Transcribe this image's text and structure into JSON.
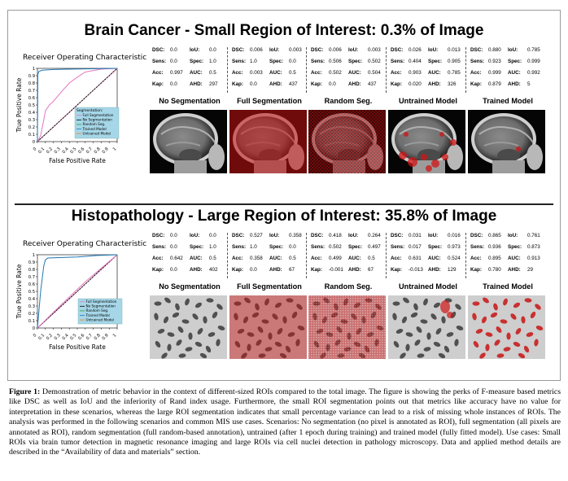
{
  "sections": [
    {
      "title": "Brain Cancer - Small Region of Interest: 0.3% of Image",
      "roc": {
        "title": "Receiver Operating Characteristic",
        "ylabel": "True Positive Rate",
        "xlabel": "False Positive Rate",
        "ticks": [
          "0",
          "0.1",
          "0.2",
          "0.3",
          "0.4",
          "0.5",
          "0.6",
          "0.7",
          "0.8",
          "0.9",
          "1"
        ],
        "legend_title": "Segmentation:",
        "legend": [
          "Full Segmentation",
          "No Segmentation",
          "Random Seg.",
          "Trained Model",
          "Untrained Model"
        ]
      },
      "panels": [
        {
          "label": "No Segmentation",
          "dsc": "0.0",
          "iou": "0.0",
          "sens": "0.0",
          "spec": "1.0",
          "acc": "0.997",
          "auc": "0.5",
          "kap": "0.0",
          "ahd": "297"
        },
        {
          "label": "Full Segmentation",
          "dsc": "0.006",
          "iou": "0.003",
          "sens": "1.0",
          "spec": "0.0",
          "acc": "0.003",
          "auc": "0.5",
          "kap": "0.0",
          "ahd": "437"
        },
        {
          "label": "Random Seg.",
          "dsc": "0.006",
          "iou": "0.003",
          "sens": "0.506",
          "spec": "0.502",
          "acc": "0.502",
          "auc": "0.504",
          "kap": "0.0",
          "ahd": "437"
        },
        {
          "label": "Untrained Model",
          "dsc": "0.026",
          "iou": "0.013",
          "sens": "0.404",
          "spec": "0.905",
          "acc": "0.903",
          "auc": "0.785",
          "kap": "0.020",
          "ahd": "326"
        },
        {
          "label": "Trained Model",
          "dsc": "0.880",
          "iou": "0.785",
          "sens": "0.923",
          "spec": "0.999",
          "acc": "0.999",
          "auc": "0.992",
          "kap": "0.879",
          "ahd": "5"
        }
      ]
    },
    {
      "title": "Histopathology - Large Region of Interest: 35.8% of Image",
      "roc": {
        "title": "Receiver Operating Characteristic",
        "ylabel": "True Positive Rate",
        "xlabel": "False Positive Rate",
        "ticks": [
          "0",
          "0.1",
          "0.2",
          "0.3",
          "0.4",
          "0.5",
          "0.6",
          "0.7",
          "0.8",
          "0.9",
          "1"
        ],
        "legend_title": "",
        "legend": [
          "Full Segmentation",
          "No Segmentation",
          "Random Seg.",
          "Trained Model",
          "Untrained Model"
        ]
      },
      "panels": [
        {
          "label": "No Segmentation",
          "dsc": "0.0",
          "iou": "0.0",
          "sens": "0.0",
          "spec": "1.0",
          "acc": "0.642",
          "auc": "0.5",
          "kap": "0.0",
          "ahd": "402"
        },
        {
          "label": "Full Segmentation",
          "dsc": "0.527",
          "iou": "0.358",
          "sens": "1.0",
          "spec": "0.0",
          "acc": "0.358",
          "auc": "0.5",
          "kap": "0.0",
          "ahd": "67"
        },
        {
          "label": "Random Seg.",
          "dsc": "0.418",
          "iou": "0.264",
          "sens": "0.502",
          "spec": "0.497",
          "acc": "0.499",
          "auc": "0.5",
          "kap": "-0.001",
          "ahd": "67"
        },
        {
          "label": "Untrained Model",
          "dsc": "0.031",
          "iou": "0.016",
          "sens": "0.017",
          "spec": "0.973",
          "acc": "0.631",
          "auc": "0.524",
          "kap": "-0.013",
          "ahd": "129"
        },
        {
          "label": "Trained Model",
          "dsc": "0.865",
          "iou": "0.761",
          "sens": "0.936",
          "spec": "0.873",
          "acc": "0.895",
          "auc": "0.913",
          "kap": "0.780",
          "ahd": "29"
        }
      ]
    }
  ],
  "metric_keys": {
    "dsc": "DSC:",
    "iou": "IoU:",
    "sens": "Sens:",
    "spec": "Spec:",
    "acc": "Acc:",
    "auc": "AUC:",
    "kap": "Kap:",
    "ahd": "AHD:"
  },
  "colors": {
    "full": "#e377c2",
    "no": "#1f77b4",
    "random": "#2ca02c",
    "trained": "#1f77b4",
    "untrained": "#ff7f0e",
    "legend_bg": "#a6d7e8",
    "mask": "#d21414"
  },
  "chart_data": [
    {
      "type": "line",
      "title": "Receiver Operating Characteristic",
      "xlabel": "False Positive Rate",
      "ylabel": "True Positive Rate",
      "xlim": [
        0,
        1
      ],
      "ylim": [
        0,
        1
      ],
      "series": [
        {
          "name": "Full Segmentation",
          "x": [
            0,
            1
          ],
          "y": [
            0,
            1
          ]
        },
        {
          "name": "No Segmentation",
          "x": [
            0,
            1
          ],
          "y": [
            0,
            1
          ]
        },
        {
          "name": "Random Seg.",
          "x": [
            0,
            1
          ],
          "y": [
            0,
            1
          ]
        },
        {
          "name": "Trained Model",
          "x": [
            0,
            0.005,
            0.02,
            0.06,
            0.2,
            0.45,
            0.7,
            1
          ],
          "y": [
            0,
            0.92,
            0.96,
            0.975,
            0.985,
            0.99,
            0.995,
            1
          ]
        },
        {
          "name": "Untrained Model",
          "x": [
            0,
            0.04,
            0.08,
            0.1,
            0.15,
            0.2,
            0.3,
            0.4,
            0.5,
            0.6,
            0.8,
            1
          ],
          "y": [
            0,
            0.08,
            0.3,
            0.42,
            0.5,
            0.55,
            0.68,
            0.8,
            0.88,
            0.95,
            0.99,
            1
          ]
        }
      ]
    },
    {
      "type": "line",
      "title": "Receiver Operating Characteristic",
      "xlabel": "False Positive Rate",
      "ylabel": "True Positive Rate",
      "xlim": [
        0,
        1
      ],
      "ylim": [
        0,
        1
      ],
      "series": [
        {
          "name": "Full Segmentation",
          "x": [
            0,
            1
          ],
          "y": [
            0,
            1
          ]
        },
        {
          "name": "No Segmentation",
          "x": [
            0,
            1
          ],
          "y": [
            0,
            1
          ]
        },
        {
          "name": "Random Seg.",
          "x": [
            0,
            1
          ],
          "y": [
            0,
            1
          ]
        },
        {
          "name": "Trained Model",
          "x": [
            0,
            0.04,
            0.08,
            0.1,
            0.13,
            0.5,
            0.75,
            1
          ],
          "y": [
            0,
            0.5,
            0.85,
            0.93,
            0.955,
            0.97,
            0.99,
            1
          ]
        },
        {
          "name": "Untrained Model",
          "x": [
            0,
            0.3,
            0.6,
            1
          ],
          "y": [
            0,
            0.32,
            0.63,
            1
          ]
        }
      ]
    }
  ],
  "caption": {
    "label": "Figure 1:",
    "text": " Demonstration of metric behavior in the context of different-sized ROIs compared to the total image. The figure is showing the perks of F-measure based metrics like DSC as well as IoU and the inferiority of Rand index usage. Furthermore, the small ROI segmentation points out that metrics like accuracy have no value for interpretation in these scenarios, whereas the large ROI segmentation indicates that small percentage variance can lead to a risk of missing whole instances of ROIs. The analysis was performed in the following scenarios and common MIS use cases. Scenarios: No segmentation (no pixel is annotated as ROI), full segmentation (all pixels are annotated as ROI), random segmentation (full random-based annotation), untrained (after 1 epoch during training) and trained model (fully fitted model). Use cases: Small ROIs via brain tumor detection in magnetic resonance imaging and large ROIs via cell nuclei detection in pathology microscopy. Data and applied method details are described in the “Availability of data and materials” section."
  }
}
